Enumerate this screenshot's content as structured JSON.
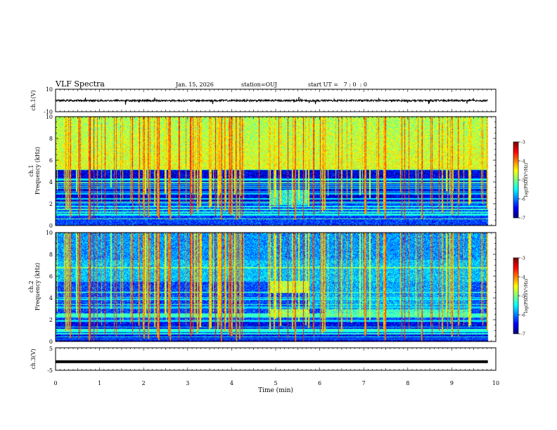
{
  "chart_data": {
    "type": "heatmap",
    "title": "VLF Spectra",
    "date": "Jan. 15, 2026",
    "station": "station=OUJ",
    "start_ut": "start UT =   7 : 0  : 0",
    "xlabel": "Time (min)",
    "xlim": [
      0,
      10
    ],
    "x_ticks": [
      "0",
      "1",
      "2",
      "3",
      "4",
      "5",
      "6",
      "7",
      "8",
      "9",
      "10"
    ],
    "panels": [
      {
        "id": "ch1-waveform",
        "type": "line",
        "ylabel": "ch.1(V)",
        "ylim": [
          -10,
          10
        ],
        "y_ticks": [
          "10",
          "-10"
        ],
        "baseline": -0.1,
        "data_end_min": 9.82
      },
      {
        "id": "ch1-spectrogram",
        "type": "heatmap",
        "ylabel": "ch.1",
        "ylabel2": "Frequency (kHz)",
        "ylim": [
          0,
          10
        ],
        "y_ticks": [
          "0",
          "2",
          "4",
          "6",
          "8",
          "10"
        ],
        "colorbar": {
          "label": "log(PSD)(V²/Hz)",
          "range": [
            -7,
            -3
          ],
          "ticks": [
            "-3",
            "-4",
            "-5",
            "-6",
            "-7"
          ]
        },
        "features": [
          {
            "name": "background",
            "freq_khz": [
              0,
              5
            ],
            "log_psd": -6.6
          },
          {
            "name": "sferic-band",
            "freq_khz": [
              5,
              10
            ],
            "log_psd": -4.6
          },
          {
            "name": "enhanced-noise",
            "time_min": [
              4.85,
              5.75
            ],
            "freq_khz": [
              1.9,
              3.3
            ],
            "log_psd": -5.4
          }
        ]
      },
      {
        "id": "ch2-spectrogram",
        "type": "heatmap",
        "ylabel": "ch.2",
        "ylabel2": "Frequency (kHz)",
        "ylim": [
          0,
          10
        ],
        "y_ticks": [
          "0",
          "2",
          "4",
          "6",
          "8",
          "10"
        ],
        "colorbar": {
          "label": "log(PSD)(V²/Hz)",
          "range": [
            -7,
            -3
          ],
          "ticks": [
            "-3",
            "-4",
            "-5",
            "-6",
            "-7"
          ]
        },
        "features": [
          {
            "name": "background",
            "freq_khz": [
              0,
              10
            ],
            "log_psd": -6.2
          },
          {
            "name": "band-upper",
            "time_min": [
              4.85,
              5.75
            ],
            "freq_khz": [
              4.5,
              5.6
            ],
            "log_psd": -4.8
          },
          {
            "name": "band-lower",
            "time_min": [
              4.85,
              5.75
            ],
            "freq_khz": [
              2.3,
              3.0
            ],
            "log_psd": -4.9
          },
          {
            "name": "band-lower-weak",
            "time_min": [
              6.1,
              9.4
            ],
            "freq_khz": [
              2.3,
              3.0
            ],
            "log_psd": -5.3
          }
        ]
      },
      {
        "id": "ch3-waveform",
        "type": "line",
        "ylabel": "ch.3(V)",
        "ylim": [
          -5,
          5
        ],
        "y_ticks": [
          "5",
          "-5"
        ],
        "baseline": -1.2,
        "data_end_min": 9.82
      }
    ]
  }
}
